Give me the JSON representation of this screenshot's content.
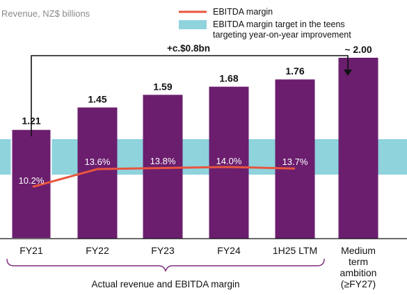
{
  "chart_data": {
    "type": "bar",
    "ylabel": "Revenue, NZ$ billions",
    "categories": [
      "FY21",
      "FY22",
      "FY23",
      "FY24",
      "1H25 LTM",
      "Medium term ambition (≥FY27)"
    ],
    "category_lines": [
      [
        "FY21"
      ],
      [
        "FY22"
      ],
      [
        "FY23"
      ],
      [
        "FY24"
      ],
      [
        "1H25 LTM"
      ],
      [
        "Medium",
        "term",
        "ambition",
        "(≥FY27)"
      ]
    ],
    "series": [
      {
        "name": "Revenue",
        "values": [
          1.21,
          1.45,
          1.59,
          1.68,
          1.76,
          2.0
        ],
        "value_labels": [
          "1.21",
          "1.45",
          "1.59",
          "1.68",
          "1.76",
          "~ 2.00"
        ],
        "color": "#6b1e6e"
      },
      {
        "name": "EBITDA margin",
        "values_pct": [
          10.2,
          13.6,
          13.8,
          14.0,
          13.7
        ],
        "value_labels": [
          "10.2%",
          "13.6%",
          "13.8%",
          "14.0%",
          "13.7%"
        ],
        "color": "#e8553e"
      }
    ],
    "target_band": {
      "name": "EBITDA margin target in the teens targeting year-on-year improvement",
      "legend_lines": [
        "EBITDA margin target in the teens",
        "targeting year-on-year improvement"
      ],
      "color": "#8fd3dd"
    },
    "legend": {
      "placement": "top-right",
      "entries": [
        "EBITDA margin",
        "EBITDA margin target in the teens targeting year-on-year improvement"
      ]
    },
    "annotations": {
      "increase": "+c.$0.8bn",
      "bracket": "Actual revenue and EBITDA margin"
    },
    "ylim": [
      0,
      2.2
    ],
    "grid": false
  }
}
